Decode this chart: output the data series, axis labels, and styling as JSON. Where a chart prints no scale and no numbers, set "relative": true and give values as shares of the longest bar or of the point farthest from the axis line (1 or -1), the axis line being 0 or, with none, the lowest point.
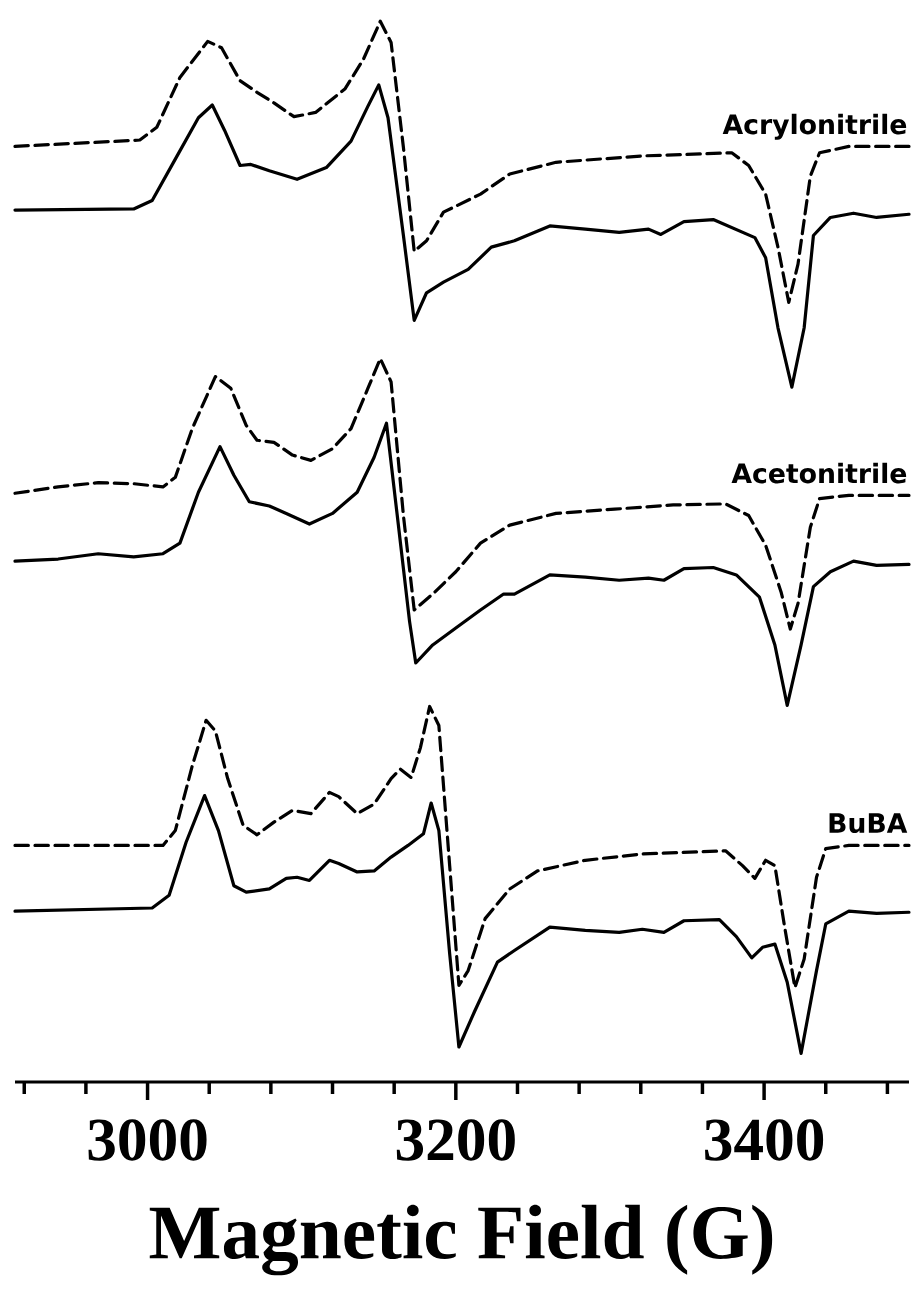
{
  "chart_data": {
    "type": "line",
    "relative": true,
    "xlabel": "Magnetic Field (G)",
    "xlim": [
      2914,
      3494
    ],
    "xticks": [
      {
        "value": 2920,
        "label": null
      },
      {
        "value": 2960,
        "label": null
      },
      3000,
      {
        "value": 3040,
        "label": null
      },
      {
        "value": 3080,
        "label": null
      },
      {
        "value": 3120,
        "label": null
      },
      {
        "value": 3160,
        "label": null
      },
      3200,
      {
        "value": 3240,
        "label": null
      },
      {
        "value": 3280,
        "label": null
      },
      {
        "value": 3320,
        "label": null
      },
      {
        "value": 3360,
        "label": null
      },
      3400,
      {
        "value": 3440,
        "label": null
      },
      {
        "value": 3480,
        "label": null
      }
    ],
    "annotations": [
      "Acrylonitrile",
      "Acetonitrile",
      "BuBA"
    ],
    "series": [
      {
        "color": "#000000",
        "line_style": "dashed",
        "x": [
          2914,
          2995,
          3006,
          3021,
          3039,
          3048,
          3060,
          3071,
          3082,
          3095,
          3109,
          3128,
          3140,
          3151,
          3158,
          3166,
          3173,
          3181,
          3192,
          3216,
          3235,
          3265,
          3321,
          3379,
          3390,
          3401,
          3409,
          3416,
          3422,
          3430,
          3436,
          3455,
          3494
        ],
        "values": [
          0.882,
          0.888,
          0.9,
          0.947,
          0.981,
          0.975,
          0.944,
          0.933,
          0.923,
          0.91,
          0.914,
          0.936,
          0.964,
          1.0,
          0.98,
          0.881,
          0.783,
          0.793,
          0.82,
          0.837,
          0.856,
          0.867,
          0.873,
          0.876,
          0.864,
          0.837,
          0.787,
          0.735,
          0.771,
          0.854,
          0.876,
          0.882,
          0.882
        ]
      },
      {
        "color": "#000000",
        "line_style": "solid",
        "x": [
          2914,
          2991,
          3003,
          3018,
          3033,
          3042,
          3050,
          3060,
          3067,
          3079,
          3097,
          3116,
          3132,
          3143,
          3150,
          3156,
          3166,
          3173,
          3181,
          3192,
          3208,
          3223,
          3238,
          3261,
          3284,
          3306,
          3325,
          3333,
          3348,
          3367,
          3394,
          3401,
          3409,
          3418,
          3426,
          3432,
          3443,
          3458,
          3473,
          3494
        ],
        "values": [
          0.822,
          0.823,
          0.831,
          0.87,
          0.909,
          0.921,
          0.897,
          0.864,
          0.865,
          0.859,
          0.851,
          0.862,
          0.887,
          0.92,
          0.94,
          0.909,
          0.798,
          0.718,
          0.744,
          0.754,
          0.766,
          0.787,
          0.793,
          0.807,
          0.804,
          0.801,
          0.804,
          0.799,
          0.811,
          0.813,
          0.796,
          0.777,
          0.711,
          0.655,
          0.711,
          0.798,
          0.815,
          0.819,
          0.815,
          0.818
        ]
      },
      {
        "color": "#000000",
        "line_style": "dashed",
        "x": [
          2914,
          2942,
          2968,
          2991,
          3010,
          3018,
          3029,
          3044,
          3054,
          3064,
          3071,
          3082,
          3094,
          3106,
          3120,
          3132,
          3143,
          3151,
          3158,
          3166,
          3173,
          3185,
          3200,
          3216,
          3235,
          3265,
          3303,
          3341,
          3375,
          3390,
          3401,
          3411,
          3417,
          3422,
          3430,
          3436,
          3455,
          3494
        ],
        "values": [
          0.555,
          0.561,
          0.565,
          0.564,
          0.561,
          0.57,
          0.616,
          0.665,
          0.654,
          0.619,
          0.605,
          0.603,
          0.591,
          0.586,
          0.597,
          0.616,
          0.654,
          0.682,
          0.66,
          0.534,
          0.445,
          0.46,
          0.481,
          0.508,
          0.525,
          0.536,
          0.54,
          0.544,
          0.545,
          0.534,
          0.506,
          0.462,
          0.427,
          0.451,
          0.523,
          0.55,
          0.553,
          0.553
        ]
      },
      {
        "color": "#000000",
        "line_style": "solid",
        "x": [
          2914,
          2942,
          2968,
          2991,
          3010,
          3021,
          3033,
          3047,
          3056,
          3066,
          3079,
          3090,
          3105,
          3120,
          3136,
          3147,
          3155,
          3162,
          3170,
          3174,
          3185,
          3200,
          3216,
          3231,
          3238,
          3261,
          3284,
          3306,
          3325,
          3335,
          3348,
          3367,
          3382,
          3397,
          3407,
          3415,
          3424,
          3432,
          3443,
          3458,
          3473,
          3494
        ],
        "values": [
          0.491,
          0.493,
          0.498,
          0.495,
          0.498,
          0.508,
          0.556,
          0.599,
          0.572,
          0.547,
          0.543,
          0.536,
          0.526,
          0.536,
          0.556,
          0.589,
          0.621,
          0.534,
          0.434,
          0.395,
          0.412,
          0.428,
          0.445,
          0.46,
          0.46,
          0.478,
          0.476,
          0.473,
          0.475,
          0.473,
          0.484,
          0.485,
          0.478,
          0.457,
          0.412,
          0.355,
          0.412,
          0.467,
          0.481,
          0.491,
          0.487,
          0.488
        ]
      },
      {
        "color": "#000000",
        "line_style": "dashed",
        "x": [
          2914,
          3010,
          3018,
          3029,
          3038,
          3044,
          3052,
          3062,
          3071,
          3082,
          3094,
          3106,
          3118,
          3124,
          3136,
          3147,
          3158,
          3164,
          3171,
          3177,
          3183,
          3189,
          3196,
          3202,
          3208,
          3219,
          3235,
          3253,
          3284,
          3321,
          3375,
          3386,
          3394,
          3401,
          3407,
          3413,
          3420,
          3426,
          3434,
          3440,
          3455,
          3494
        ],
        "values": [
          0.223,
          0.223,
          0.237,
          0.298,
          0.341,
          0.331,
          0.286,
          0.242,
          0.233,
          0.245,
          0.256,
          0.253,
          0.273,
          0.269,
          0.253,
          0.262,
          0.286,
          0.295,
          0.287,
          0.315,
          0.354,
          0.336,
          0.204,
          0.091,
          0.105,
          0.154,
          0.182,
          0.199,
          0.209,
          0.215,
          0.218,
          0.204,
          0.192,
          0.209,
          0.204,
          0.149,
          0.089,
          0.116,
          0.193,
          0.22,
          0.223,
          0.223
        ]
      },
      {
        "color": "#000000",
        "line_style": "solid",
        "x": [
          2914,
          3003,
          3014,
          3025,
          3037,
          3046,
          3056,
          3064,
          3079,
          3090,
          3097,
          3105,
          3118,
          3124,
          3136,
          3147,
          3158,
          3169,
          3179,
          3184,
          3189,
          3196,
          3202,
          3212,
          3227,
          3238,
          3261,
          3284,
          3306,
          3321,
          3335,
          3348,
          3371,
          3382,
          3392,
          3399,
          3407,
          3415,
          3424,
          3434,
          3440,
          3455,
          3473,
          3494
        ],
        "values": [
          0.161,
          0.164,
          0.176,
          0.226,
          0.27,
          0.237,
          0.185,
          0.179,
          0.182,
          0.192,
          0.193,
          0.19,
          0.209,
          0.206,
          0.198,
          0.199,
          0.212,
          0.223,
          0.234,
          0.263,
          0.237,
          0.121,
          0.033,
          0.066,
          0.113,
          0.124,
          0.146,
          0.143,
          0.141,
          0.144,
          0.141,
          0.152,
          0.153,
          0.137,
          0.117,
          0.127,
          0.13,
          0.094,
          0.027,
          0.105,
          0.149,
          0.161,
          0.159,
          0.16
        ]
      }
    ]
  }
}
